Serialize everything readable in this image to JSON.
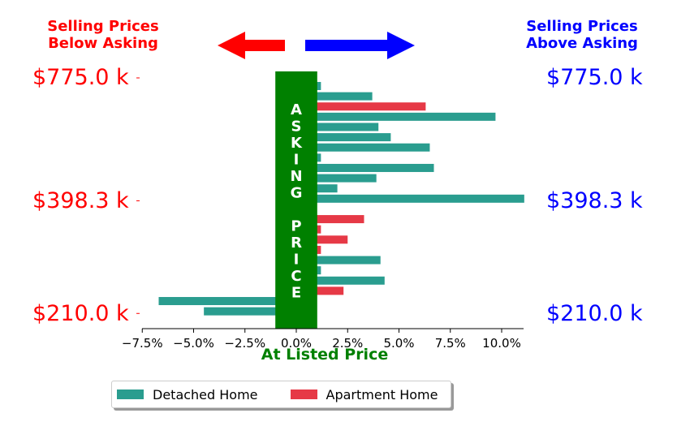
{
  "header": {
    "left_line1": "Selling Prices",
    "left_line2": "Below Asking",
    "right_line1": "Selling Prices",
    "right_line2": "Above Asking"
  },
  "colors": {
    "detached": "#2a9d8f",
    "apartment": "#e63946",
    "left_text": "#ff0000",
    "right_text": "#0000ff",
    "asking_band": "#008000"
  },
  "asking_price_label": [
    "A",
    "S",
    "K",
    "I",
    "N",
    "G",
    "",
    "P",
    "R",
    "I",
    "C",
    "E"
  ],
  "legend": {
    "detached_label": "Detached Home",
    "apartment_label": "Apartment Home"
  },
  "chart_data": {
    "type": "bar",
    "orientation": "horizontal",
    "title": "",
    "xlabel": "At Listed Price",
    "x_tick_labels": [
      "−7.5%",
      "−5.0%",
      "−2.5%",
      "0.0%",
      "2.5%",
      "5.0%",
      "7.5%",
      "10.0%"
    ],
    "x_ticks": [
      -7.5,
      -5.0,
      -2.5,
      0.0,
      2.5,
      5.0,
      7.5,
      10.0
    ],
    "xlim": [
      -7.5,
      11.2
    ],
    "y_tick_labels": [
      "$775.0 k",
      "$398.3 k",
      "$210.0 k"
    ],
    "y_ticks_bar_index": [
      0,
      12,
      23
    ],
    "series": [
      {
        "name": "Detached Home",
        "color": "#2a9d8f"
      },
      {
        "name": "Apartment Home",
        "color": "#e63946"
      }
    ],
    "bars": [
      {
        "type": "Detached Home",
        "value": 1.2
      },
      {
        "type": "Detached Home",
        "value": 3.7
      },
      {
        "type": "Apartment Home",
        "value": 6.3
      },
      {
        "type": "Detached Home",
        "value": 9.7
      },
      {
        "type": "Detached Home",
        "value": 4.0
      },
      {
        "type": "Detached Home",
        "value": 4.6
      },
      {
        "type": "Detached Home",
        "value": 6.5
      },
      {
        "type": "Detached Home",
        "value": 1.2
      },
      {
        "type": "Detached Home",
        "value": 6.7
      },
      {
        "type": "Detached Home",
        "value": 3.9
      },
      {
        "type": "Detached Home",
        "value": 2.0
      },
      {
        "type": "Detached Home",
        "value": 11.1
      },
      {
        "type": "Detached Home",
        "value": -1.0
      },
      {
        "type": "Apartment Home",
        "value": 3.3
      },
      {
        "type": "Apartment Home",
        "value": 1.2
      },
      {
        "type": "Apartment Home",
        "value": 2.5
      },
      {
        "type": "Apartment Home",
        "value": 1.2
      },
      {
        "type": "Detached Home",
        "value": 4.1
      },
      {
        "type": "Detached Home",
        "value": 1.2
      },
      {
        "type": "Detached Home",
        "value": 4.3
      },
      {
        "type": "Apartment Home",
        "value": 2.3
      },
      {
        "type": "Detached Home",
        "value": -6.7
      },
      {
        "type": "Detached Home",
        "value": -4.5
      }
    ],
    "asking_band": [
      -1.0,
      1.0
    ],
    "legend_position": "lower-center",
    "grid": false
  }
}
